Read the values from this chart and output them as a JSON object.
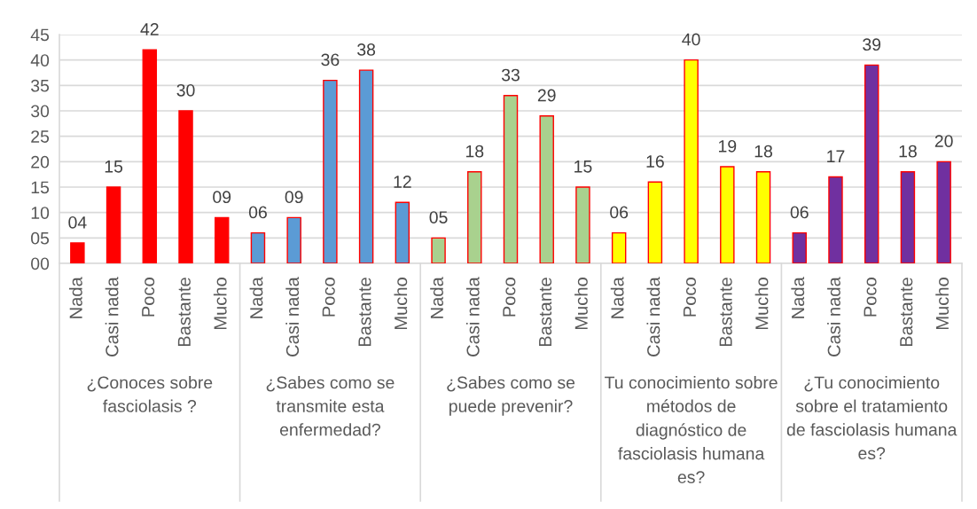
{
  "chart_data": {
    "type": "bar",
    "categories": [
      "Nada",
      "Casi nada",
      "Poco",
      "Bastante",
      "Mucho",
      "Nada",
      "Casi nada",
      "Poco",
      "Bastante",
      "Mucho",
      "Nada",
      "Casi nada",
      "Poco",
      "Bastante",
      "Mucho",
      "Nada",
      "Casi nada",
      "Poco",
      "Bastante",
      "Mucho",
      "Nada",
      "Casi nada",
      "Poco",
      "Bastante",
      "Mucho"
    ],
    "values": [
      4,
      15,
      42,
      30,
      9,
      6,
      9,
      36,
      38,
      12,
      5,
      18,
      33,
      29,
      15,
      6,
      16,
      40,
      19,
      18,
      6,
      17,
      39,
      18,
      20
    ],
    "value_labels": [
      "04",
      "15",
      "42",
      "30",
      "09",
      "06",
      "09",
      "36",
      "38",
      "12",
      "05",
      "18",
      "33",
      "29",
      "15",
      "06",
      "16",
      "40",
      "19",
      "18",
      "06",
      "17",
      "39",
      "18",
      "20"
    ],
    "colors": [
      "#ff0000",
      "#ff0000",
      "#ff0000",
      "#ff0000",
      "#ff0000",
      "#5b9bd5",
      "#5b9bd5",
      "#5b9bd5",
      "#5b9bd5",
      "#5b9bd5",
      "#a9d18e",
      "#a9d18e",
      "#a9d18e",
      "#a9d18e",
      "#a9d18e",
      "#ffff00",
      "#ffff00",
      "#ffff00",
      "#ffff00",
      "#ffff00",
      "#7030a0",
      "#7030a0",
      "#7030a0",
      "#7030a0",
      "#7030a0"
    ],
    "ylim": [
      0,
      45
    ],
    "yticks": [
      {
        "value": 0,
        "label": "00"
      },
      {
        "value": 5,
        "label": "05"
      },
      10,
      15,
      20,
      25,
      30,
      35,
      40,
      45
    ],
    "grid": "y",
    "annotations": [
      "¿Conoces sobre fasciolasis ?",
      "¿Sabes como se transmite esta enfermedad?",
      "¿Sabes como se puede prevenir?",
      "Tu conocimiento sobre métodos de diagnóstico de fasciolasis humana es?",
      "¿Tu conocimiento sobre el tratamiento de fasciolasis humana es?"
    ]
  }
}
